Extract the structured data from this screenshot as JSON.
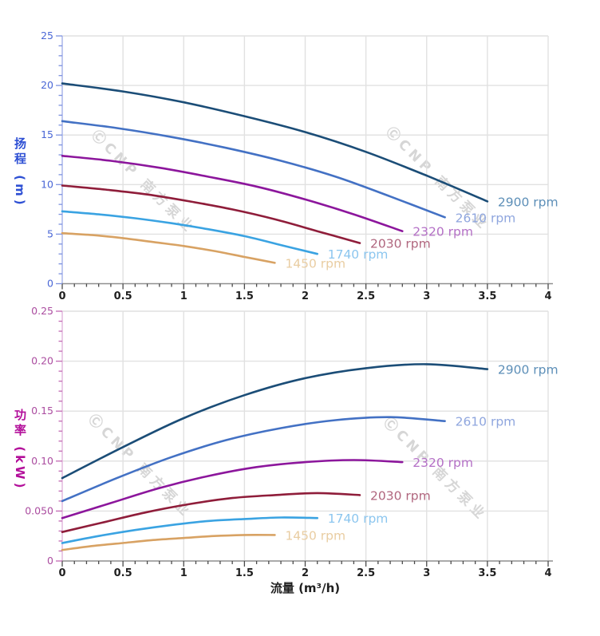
{
  "watermark": {
    "text": "ⒸCNP 南方泵业",
    "color": "#d6d6d6"
  },
  "chart_data": [
    {
      "type": "line",
      "name": "head-flow-chart",
      "xlabel": "流量 (m³/h)",
      "ylabel": "扬程 (m)",
      "xlim": [
        0,
        4
      ],
      "ylim": [
        0,
        25
      ],
      "x_major": 0.5,
      "x_minor": 0.1,
      "y_major": 5,
      "y_minor": 1,
      "grid": true,
      "legend_position": "curve-ends",
      "x_tick_labels": [
        "0",
        "0.5",
        "1",
        "1.5",
        "2",
        "2.5",
        "3",
        "3.5",
        "4"
      ],
      "y_tick_labels": [
        "0",
        "5",
        "10",
        "15",
        "20",
        "25"
      ],
      "axis_theme": {
        "title_color": "#2e50d4",
        "tick_label_color": "#4a67d6",
        "tick_color": "#7d92e0",
        "axis_line_color": "#aab6ec",
        "x_tick_color": "#4a4a4a",
        "x_label_color": "#1f1f1f",
        "grid_color": "#e1e1e1"
      },
      "series": [
        {
          "name": "2900 rpm",
          "color": "#1b4d77",
          "label_color": "#5d8fb8",
          "points": [
            [
              0,
              20.2
            ],
            [
              0.5,
              19.4
            ],
            [
              1,
              18.3
            ],
            [
              1.5,
              16.9
            ],
            [
              2,
              15.3
            ],
            [
              2.5,
              13.3
            ],
            [
              3,
              10.9
            ],
            [
              3.5,
              8.3
            ]
          ]
        },
        {
          "name": "2610 rpm",
          "color": "#4371c4",
          "label_color": "#8fa6de",
          "points": [
            [
              0,
              16.4
            ],
            [
              0.45,
              15.7
            ],
            [
              0.9,
              14.8
            ],
            [
              1.35,
              13.7
            ],
            [
              1.8,
              12.4
            ],
            [
              2.25,
              10.8
            ],
            [
              2.7,
              8.8
            ],
            [
              3.15,
              6.7
            ]
          ]
        },
        {
          "name": "2320 rpm",
          "color": "#8c169c",
          "label_color": "#b470c6",
          "points": [
            [
              0,
              12.9
            ],
            [
              0.4,
              12.4
            ],
            [
              0.8,
              11.7
            ],
            [
              1.2,
              10.8
            ],
            [
              1.6,
              9.8
            ],
            [
              2,
              8.5
            ],
            [
              2.4,
              7.0
            ],
            [
              2.8,
              5.3
            ]
          ]
        },
        {
          "name": "2030 rpm",
          "color": "#8f1d3a",
          "label_color": "#b0667e",
          "points": [
            [
              0,
              9.9
            ],
            [
              0.35,
              9.5
            ],
            [
              0.7,
              9.0
            ],
            [
              1.05,
              8.3
            ],
            [
              1.4,
              7.5
            ],
            [
              1.75,
              6.5
            ],
            [
              2.1,
              5.3
            ],
            [
              2.45,
              4.1
            ]
          ]
        },
        {
          "name": "1740 rpm",
          "color": "#3aa3e2",
          "label_color": "#8cc6ef",
          "points": [
            [
              0,
              7.3
            ],
            [
              0.3,
              7.0
            ],
            [
              0.6,
              6.6
            ],
            [
              0.9,
              6.1
            ],
            [
              1.2,
              5.5
            ],
            [
              1.5,
              4.8
            ],
            [
              1.8,
              3.9
            ],
            [
              2.1,
              3.0
            ]
          ]
        },
        {
          "name": "1450 rpm",
          "color": "#d8a263",
          "label_color": "#e9cda2",
          "points": [
            [
              0,
              5.1
            ],
            [
              0.25,
              4.9
            ],
            [
              0.5,
              4.6
            ],
            [
              0.75,
              4.2
            ],
            [
              1,
              3.8
            ],
            [
              1.25,
              3.3
            ],
            [
              1.5,
              2.7
            ],
            [
              1.75,
              2.1
            ]
          ]
        }
      ]
    },
    {
      "type": "line",
      "name": "power-flow-chart",
      "xlabel": "流量 (m³/h)",
      "ylabel": "功率 (kW)",
      "xlim": [
        0,
        4
      ],
      "ylim": [
        0,
        0.25
      ],
      "x_major": 0.5,
      "x_minor": 0.1,
      "y_major": 0.05,
      "y_minor": 0.01,
      "grid": true,
      "legend_position": "curve-ends",
      "x_tick_labels": [
        "0",
        "0.5",
        "1",
        "1.5",
        "2",
        "2.5",
        "3",
        "3.5",
        "4"
      ],
      "y_tick_labels": [
        "0",
        "0.050",
        "0.10",
        "0.15",
        "0.20",
        "0.25"
      ],
      "axis_theme": {
        "title_color": "#b30f9a",
        "tick_label_color": "#ab4da0",
        "tick_color": "#c36ab4",
        "axis_line_color": "#e3bade",
        "x_tick_color": "#4a4a4a",
        "x_label_color": "#1f1f1f",
        "grid_color": "#e1e1e1"
      },
      "series": [
        {
          "name": "2900 rpm",
          "color": "#1b4d77",
          "label_color": "#5d8fb8",
          "points": [
            [
              0,
              0.083
            ],
            [
              0.5,
              0.114
            ],
            [
              1,
              0.143
            ],
            [
              1.5,
              0.166
            ],
            [
              2,
              0.183
            ],
            [
              2.5,
              0.193
            ],
            [
              3,
              0.197
            ],
            [
              3.5,
              0.192
            ]
          ]
        },
        {
          "name": "2610 rpm",
          "color": "#4371c4",
          "label_color": "#8fa6de",
          "points": [
            [
              0,
              0.06
            ],
            [
              0.45,
              0.083
            ],
            [
              0.9,
              0.104
            ],
            [
              1.35,
              0.121
            ],
            [
              1.8,
              0.133
            ],
            [
              2.25,
              0.141
            ],
            [
              2.7,
              0.144
            ],
            [
              3.15,
              0.14
            ]
          ]
        },
        {
          "name": "2320 rpm",
          "color": "#8c169c",
          "label_color": "#b470c6",
          "points": [
            [
              0,
              0.043
            ],
            [
              0.4,
              0.058
            ],
            [
              0.8,
              0.073
            ],
            [
              1.2,
              0.085
            ],
            [
              1.6,
              0.094
            ],
            [
              2,
              0.099
            ],
            [
              2.4,
              0.101
            ],
            [
              2.8,
              0.099
            ]
          ]
        },
        {
          "name": "2030 rpm",
          "color": "#8f1d3a",
          "label_color": "#b0667e",
          "points": [
            [
              0,
              0.029
            ],
            [
              0.35,
              0.039
            ],
            [
              0.7,
              0.049
            ],
            [
              1.05,
              0.057
            ],
            [
              1.4,
              0.063
            ],
            [
              1.75,
              0.066
            ],
            [
              2.1,
              0.068
            ],
            [
              2.45,
              0.066
            ]
          ]
        },
        {
          "name": "1740 rpm",
          "color": "#3aa3e2",
          "label_color": "#8cc6ef",
          "points": [
            [
              0,
              0.018
            ],
            [
              0.3,
              0.025
            ],
            [
              0.6,
              0.031
            ],
            [
              0.9,
              0.036
            ],
            [
              1.2,
              0.04
            ],
            [
              1.5,
              0.042
            ],
            [
              1.8,
              0.0435
            ],
            [
              2.1,
              0.043
            ]
          ]
        },
        {
          "name": "1450 rpm",
          "color": "#d8a263",
          "label_color": "#e9cda2",
          "points": [
            [
              0,
              0.011
            ],
            [
              0.25,
              0.015
            ],
            [
              0.5,
              0.018
            ],
            [
              0.75,
              0.021
            ],
            [
              1,
              0.023
            ],
            [
              1.25,
              0.025
            ],
            [
              1.5,
              0.026
            ],
            [
              1.75,
              0.026
            ]
          ]
        }
      ]
    }
  ]
}
